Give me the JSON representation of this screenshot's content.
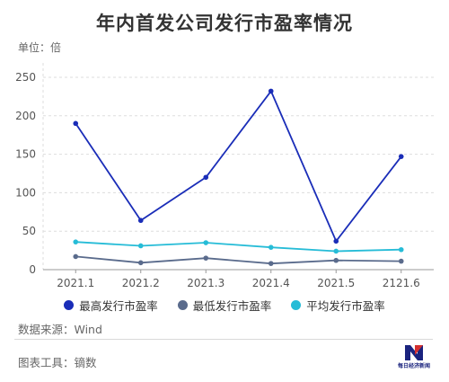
{
  "page": {
    "title": "年内首发公司发行市盈率情况",
    "unit_label": "单位：倍",
    "source": "数据来源：Wind",
    "tool": "图表工具：镝数",
    "logo_text": "每日经济新闻"
  },
  "colors": {
    "series_max": "#1a2db8",
    "series_min": "#5a6b8c",
    "series_avg": "#26bcd7",
    "grid": "#dddddd",
    "axis_text": "#555555",
    "logo_red": "#d32f2f",
    "logo_blue": "#1a237e"
  },
  "chart_data": {
    "type": "line",
    "title": "年内首发公司发行市盈率情况",
    "ylabel": "单位：倍",
    "xlabel": "",
    "categories": [
      "2021.1",
      "2021.2",
      "2021.3",
      "2021.4",
      "2021.5",
      "2121.6"
    ],
    "ylim": [
      0,
      250
    ],
    "yticks": [
      0,
      50,
      100,
      150,
      200,
      250
    ],
    "grid": "horizontal-dashed",
    "legend_position": "bottom",
    "series": [
      {
        "name": "最高发行市盈率",
        "color": "#1a2db8",
        "values": [
          190,
          64,
          120,
          232,
          37,
          147
        ]
      },
      {
        "name": "最低发行市盈率",
        "color": "#5a6b8c",
        "values": [
          17,
          9,
          15,
          8,
          12,
          11
        ]
      },
      {
        "name": "平均发行市盈率",
        "color": "#26bcd7",
        "values": [
          36,
          31,
          35,
          29,
          24,
          26
        ]
      }
    ]
  }
}
